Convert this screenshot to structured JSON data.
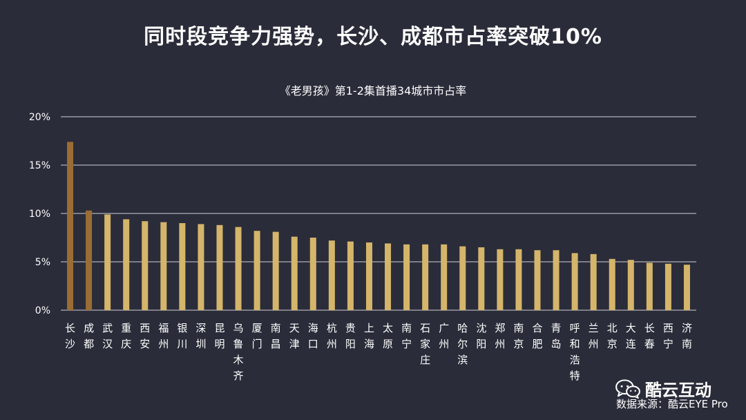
{
  "title": "同时段竞争力强势，长沙、成都市占率突破10%",
  "watermark": {
    "brand": "酷云互动",
    "icon": "wechat-icon"
  },
  "source": "数据来源：酷云EYE Pro",
  "colors": {
    "background": "#2b2c3a",
    "highlight": "#9a6d34",
    "normal": "#d4b56a",
    "grid": "#cfcfd6"
  },
  "chart_data": {
    "type": "bar",
    "title": "《老男孩》第1-2集首播34城市市占率",
    "categories": [
      "长沙",
      "成都",
      "武汉",
      "重庆",
      "西安",
      "福州",
      "银川",
      "深圳",
      "昆明",
      "乌鲁木齐",
      "厦门",
      "南昌",
      "天津",
      "海口",
      "杭州",
      "贵阳",
      "上海",
      "太原",
      "南宁",
      "石家庄",
      "广州",
      "哈尔滨",
      "沈阳",
      "郑州",
      "南京",
      "合肥",
      "青岛",
      "呼和浩特",
      "兰州",
      "北京",
      "大连",
      "长春",
      "西宁",
      "济南"
    ],
    "values": [
      17.4,
      10.3,
      9.9,
      9.4,
      9.2,
      9.1,
      9.0,
      8.9,
      8.8,
      8.6,
      8.2,
      8.1,
      7.6,
      7.5,
      7.2,
      7.1,
      7.0,
      6.9,
      6.8,
      6.8,
      6.8,
      6.6,
      6.5,
      6.3,
      6.3,
      6.2,
      6.2,
      5.9,
      5.8,
      5.3,
      5.2,
      4.9,
      4.8,
      4.7
    ],
    "highlight": [
      "长沙",
      "成都"
    ],
    "yticks": [
      "0%",
      "5%",
      "10%",
      "15%",
      "20%"
    ],
    "ylim": [
      0,
      20
    ],
    "grid": true,
    "legend": "none"
  }
}
